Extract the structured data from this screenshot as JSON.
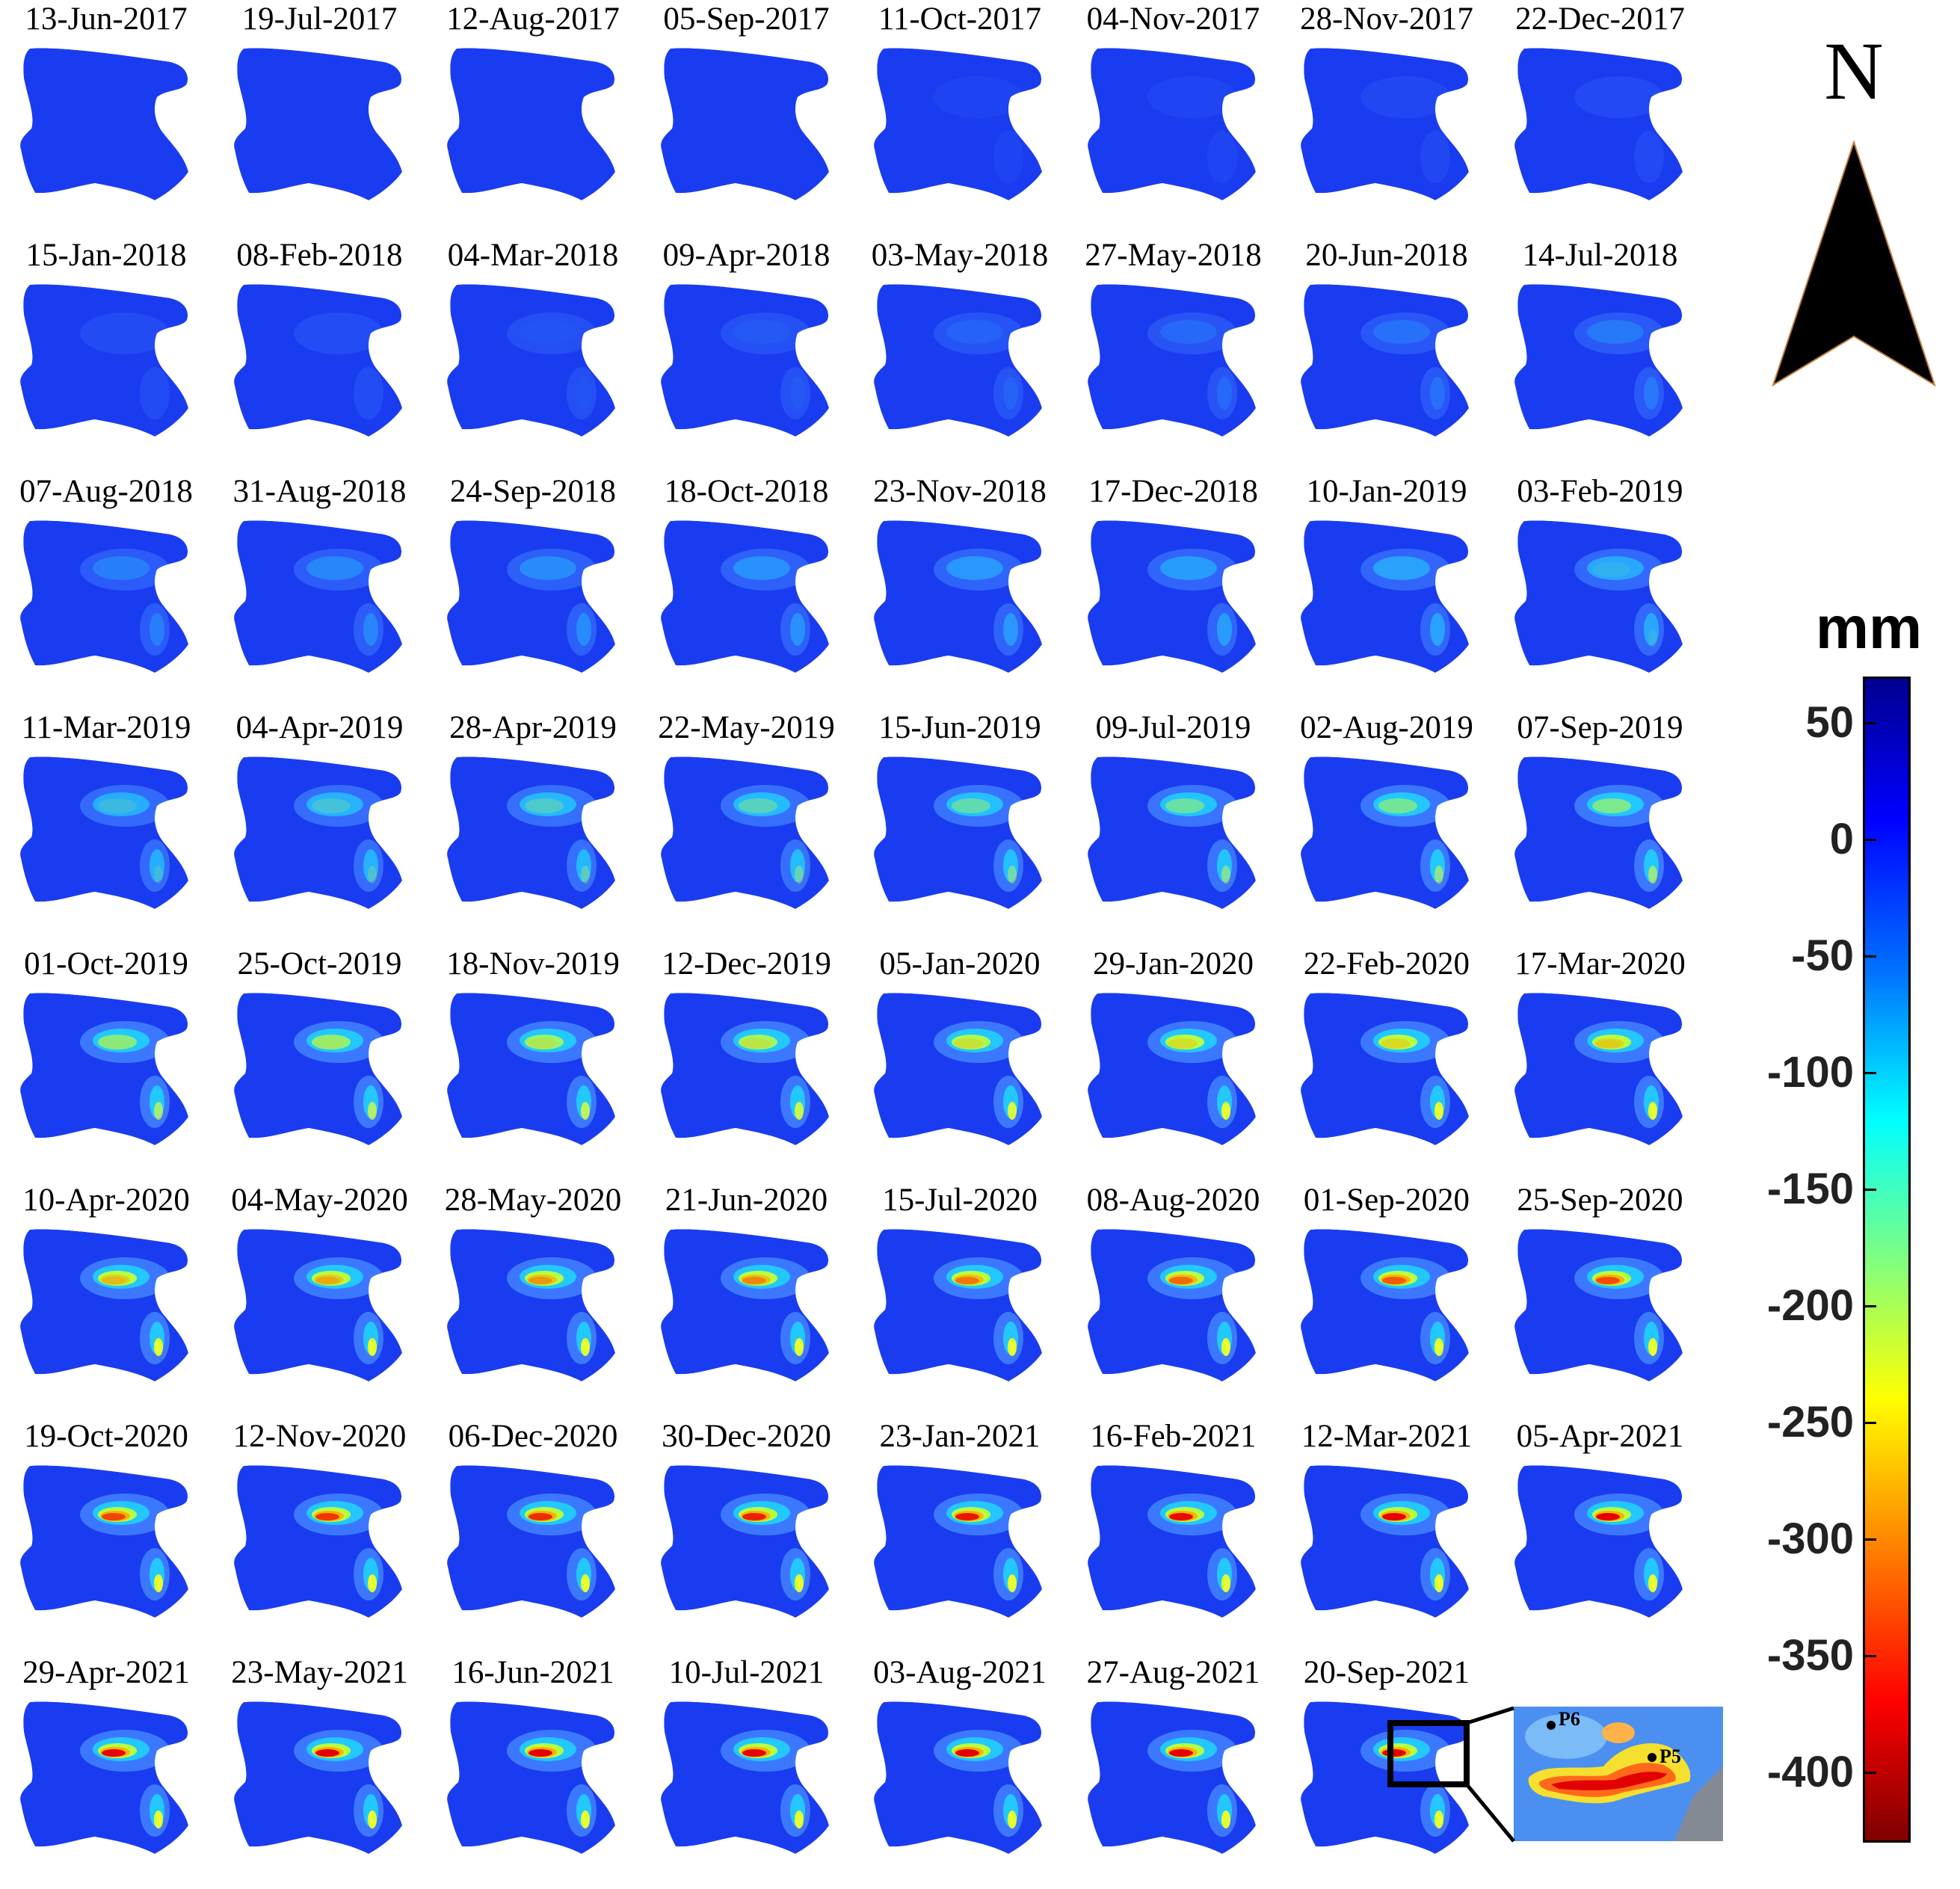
{
  "dates": [
    "13-Jun-2017",
    "19-Jul-2017",
    "12-Aug-2017",
    "05-Sep-2017",
    "11-Oct-2017",
    "04-Nov-2017",
    "28-Nov-2017",
    "22-Dec-2017",
    "15-Jan-2018",
    "08-Feb-2018",
    "04-Mar-2018",
    "09-Apr-2018",
    "03-May-2018",
    "27-May-2018",
    "20-Jun-2018",
    "14-Jul-2018",
    "07-Aug-2018",
    "31-Aug-2018",
    "24-Sep-2018",
    "18-Oct-2018",
    "23-Nov-2018",
    "17-Dec-2018",
    "10-Jan-2019",
    "03-Feb-2019",
    "11-Mar-2019",
    "04-Apr-2019",
    "28-Apr-2019",
    "22-May-2019",
    "15-Jun-2019",
    "09-Jul-2019",
    "02-Aug-2019",
    "07-Sep-2019",
    "01-Oct-2019",
    "25-Oct-2019",
    "18-Nov-2019",
    "12-Dec-2019",
    "05-Jan-2020",
    "29-Jan-2020",
    "22-Feb-2020",
    "17-Mar-2020",
    "10-Apr-2020",
    "04-May-2020",
    "28-May-2020",
    "21-Jun-2020",
    "15-Jul-2020",
    "08-Aug-2020",
    "01-Sep-2020",
    "25-Sep-2020",
    "19-Oct-2020",
    "12-Nov-2020",
    "06-Dec-2020",
    "30-Dec-2020",
    "23-Jan-2021",
    "16-Feb-2021",
    "12-Mar-2021",
    "05-Apr-2021",
    "29-Apr-2021",
    "23-May-2021",
    "16-Jun-2021",
    "10-Jul-2021",
    "03-Aug-2021",
    "27-Aug-2021",
    "20-Sep-2021"
  ],
  "north_arrow": {
    "label": "N"
  },
  "legend": {
    "unit": "mm",
    "ticks": [
      "50",
      "0",
      "-50",
      "-100",
      "-150",
      "-200",
      "-250",
      "-300",
      "-350",
      "-400"
    ],
    "tick_values": [
      50,
      0,
      -50,
      -100,
      -150,
      -200,
      -250,
      -300,
      -350,
      -400
    ],
    "range": [
      70,
      -430
    ],
    "colormap": "jet (reversed: blue positive, dark red negative)"
  },
  "inset": {
    "points": [
      {
        "label": "P6"
      },
      {
        "label": "P5"
      }
    ]
  },
  "colors": {
    "background_blue": "#1a3cf0",
    "land_inset": "#5a9ff0",
    "subsidence_peak": "#e60000",
    "frame": "#000000"
  }
}
